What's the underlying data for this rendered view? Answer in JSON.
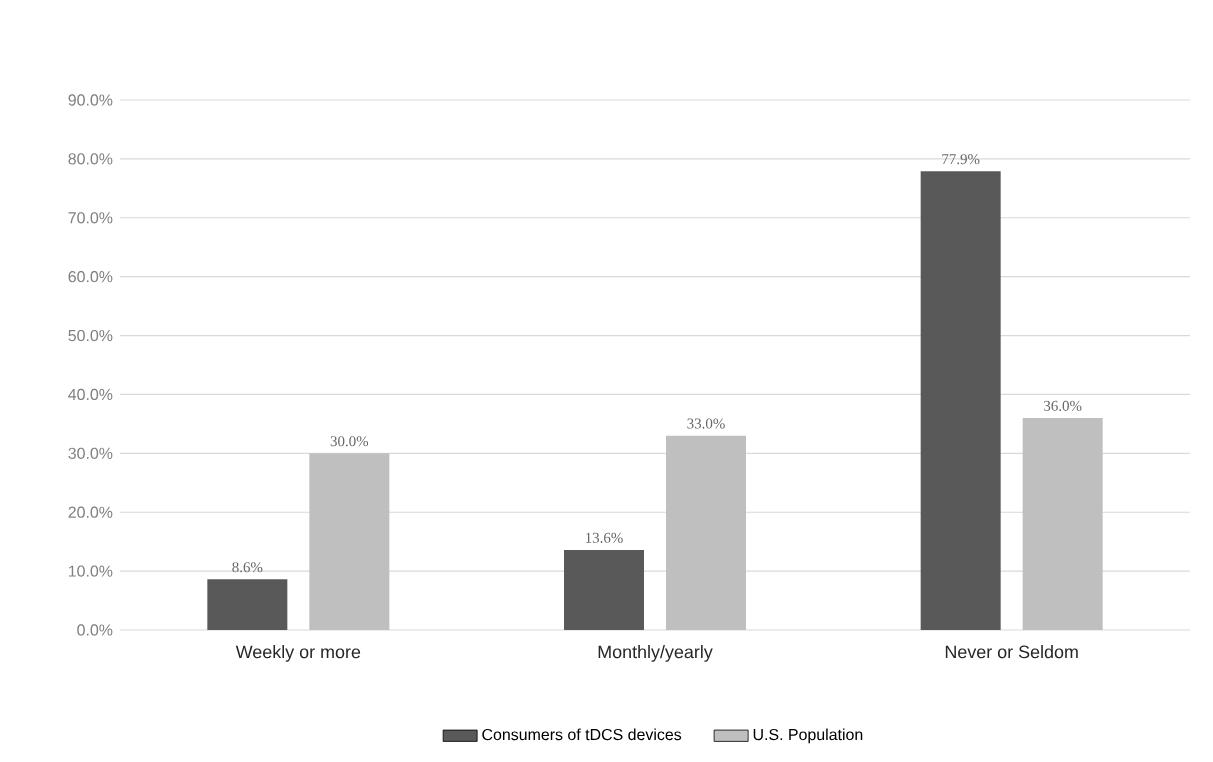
{
  "chart_data": {
    "type": "bar",
    "categories": [
      "Weekly or more",
      "Monthly/yearly",
      "Never or Seldom"
    ],
    "series": [
      {
        "name": "Consumers of tDCS devices",
        "color": "#595959",
        "values": [
          8.6,
          13.6,
          77.9
        ],
        "value_labels": [
          "8.6%",
          "13.6%",
          "77.9%"
        ]
      },
      {
        "name": "U.S. Population",
        "color": "#bfbfbf",
        "values": [
          30.0,
          33.0,
          36.0
        ],
        "value_labels": [
          "30.0%",
          "33.0%",
          "36.0%"
        ]
      }
    ],
    "ylim": [
      0,
      90
    ],
    "yticks": [
      {
        "value": 0,
        "label": "0.0%"
      },
      {
        "value": 10,
        "label": "10.0%"
      },
      {
        "value": 20,
        "label": "20.0%"
      },
      {
        "value": 30,
        "label": "30.0%"
      },
      {
        "value": 40,
        "label": "40.0%"
      },
      {
        "value": 50,
        "label": "50.0%"
      },
      {
        "value": 60,
        "label": "60.0%"
      },
      {
        "value": 70,
        "label": "70.0%"
      },
      {
        "value": 80,
        "label": "80.0%"
      },
      {
        "value": 90,
        "label": "90.0%"
      }
    ],
    "grid": "y",
    "legend": "bottom"
  }
}
